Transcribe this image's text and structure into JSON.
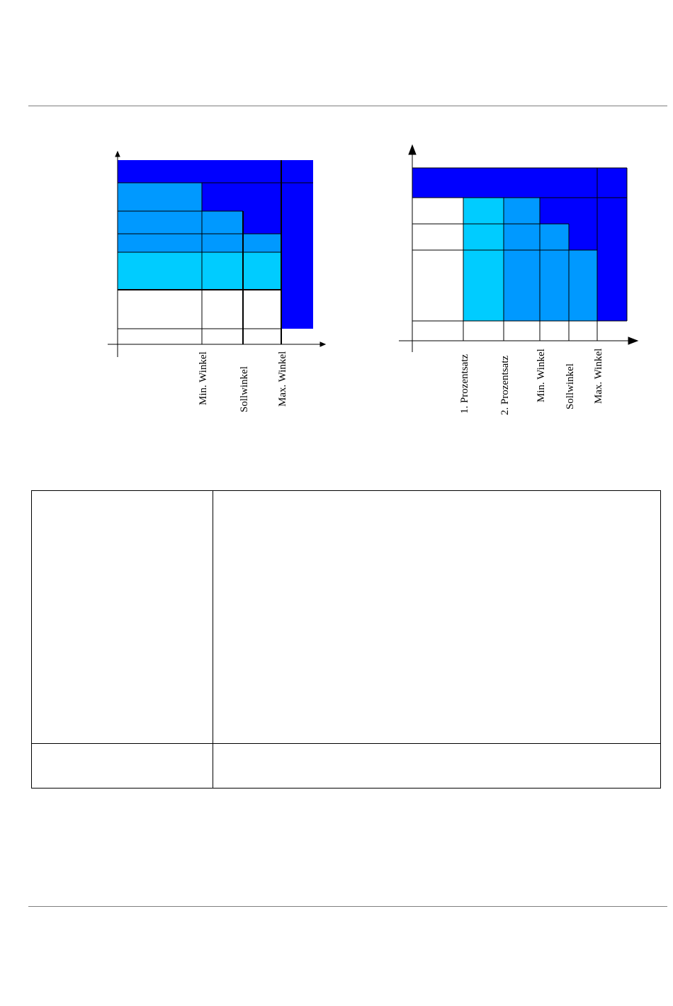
{
  "colors": {
    "dark_blue": "#0000ff",
    "medium_blue": "#0099ff",
    "light_blue": "#00ccff",
    "rule_gray": "#7f7f7f"
  },
  "diagram_left": {
    "x_labels": [
      "Min. Winkel",
      "Sollwinkel",
      "Max. Winkel"
    ]
  },
  "diagram_right": {
    "x_labels": [
      "1. Prozentsatz",
      "2. Prozentsatz",
      "Min. Winkel",
      "Sollwinkel",
      "Max. Winkel"
    ]
  },
  "table": {
    "rows": [
      {
        "label": "",
        "content": ""
      },
      {
        "label": "",
        "content": ""
      }
    ]
  }
}
